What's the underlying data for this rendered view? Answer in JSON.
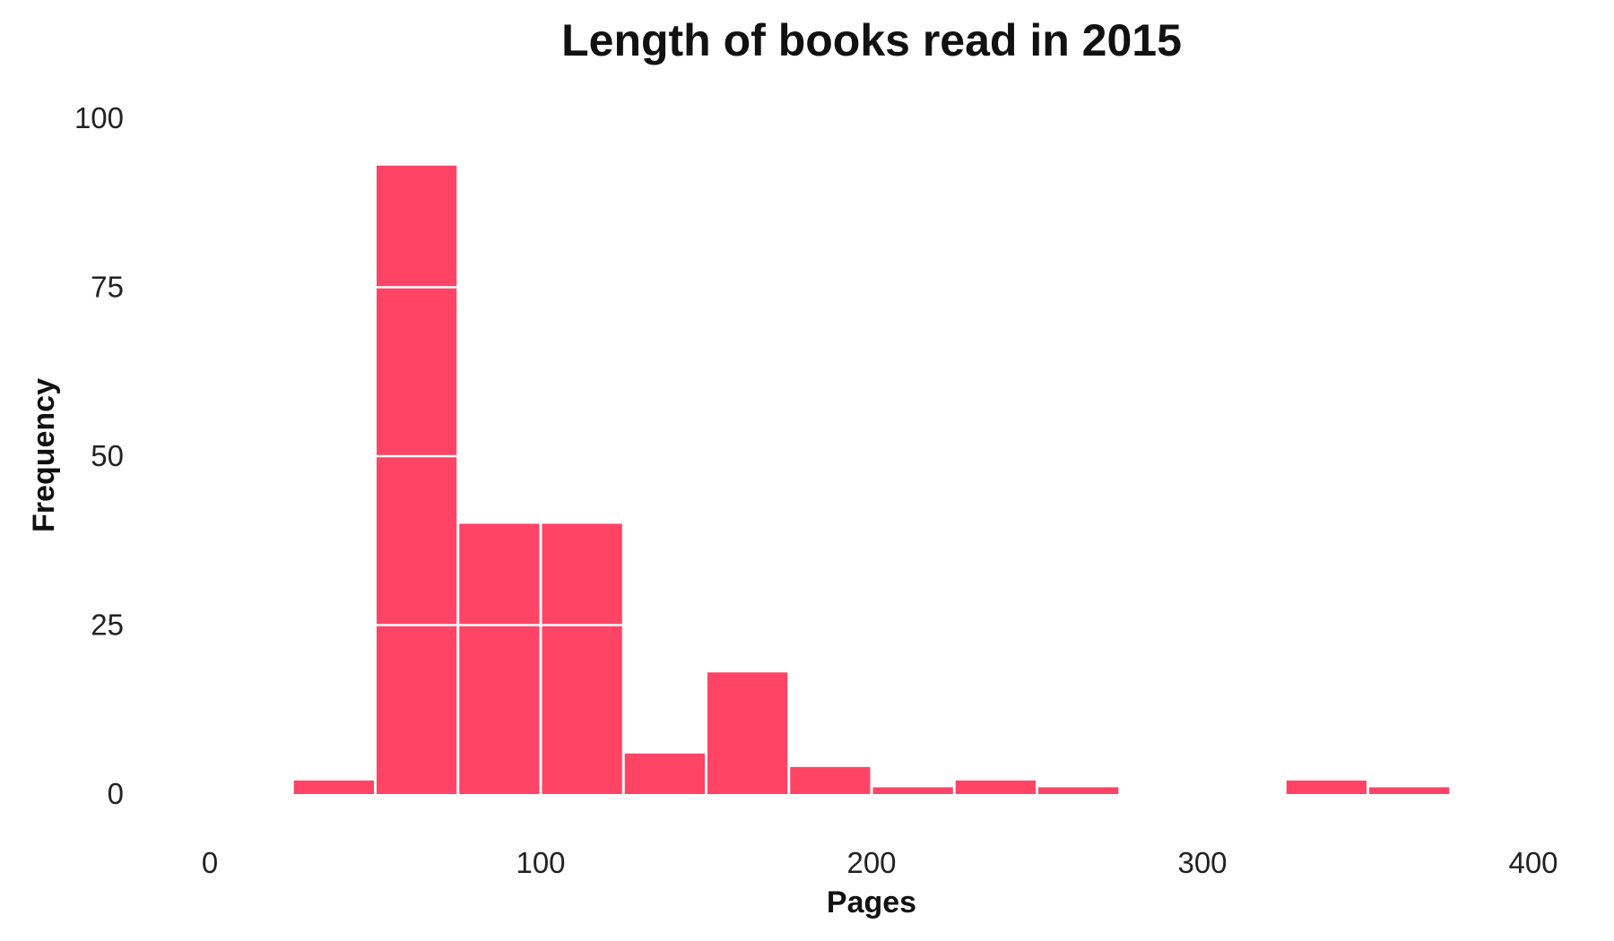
{
  "chart_data": {
    "type": "bar",
    "title": "Length of books read in 2015",
    "xlabel": "Pages",
    "ylabel": "Frequency",
    "xlim": [
      0,
      400
    ],
    "ylim": [
      0,
      100
    ],
    "xticks": [
      0,
      100,
      200,
      300,
      400
    ],
    "yticks": [
      0,
      25,
      50,
      75,
      100
    ],
    "grid": true,
    "bar_color": "#FF4466",
    "grid_color": "#FFFFFF",
    "bin_width": 25,
    "bins": [
      {
        "x0": 25,
        "x1": 50,
        "value": 2
      },
      {
        "x0": 50,
        "x1": 75,
        "value": 93
      },
      {
        "x0": 75,
        "x1": 100,
        "value": 40
      },
      {
        "x0": 100,
        "x1": 125,
        "value": 40
      },
      {
        "x0": 125,
        "x1": 150,
        "value": 6
      },
      {
        "x0": 150,
        "x1": 175,
        "value": 18
      },
      {
        "x0": 175,
        "x1": 200,
        "value": 4
      },
      {
        "x0": 200,
        "x1": 225,
        "value": 1
      },
      {
        "x0": 225,
        "x1": 250,
        "value": 2
      },
      {
        "x0": 250,
        "x1": 275,
        "value": 1
      },
      {
        "x0": 275,
        "x1": 300,
        "value": 0
      },
      {
        "x0": 300,
        "x1": 325,
        "value": 0
      },
      {
        "x0": 325,
        "x1": 350,
        "value": 2
      },
      {
        "x0": 350,
        "x1": 375,
        "value": 1
      }
    ]
  }
}
